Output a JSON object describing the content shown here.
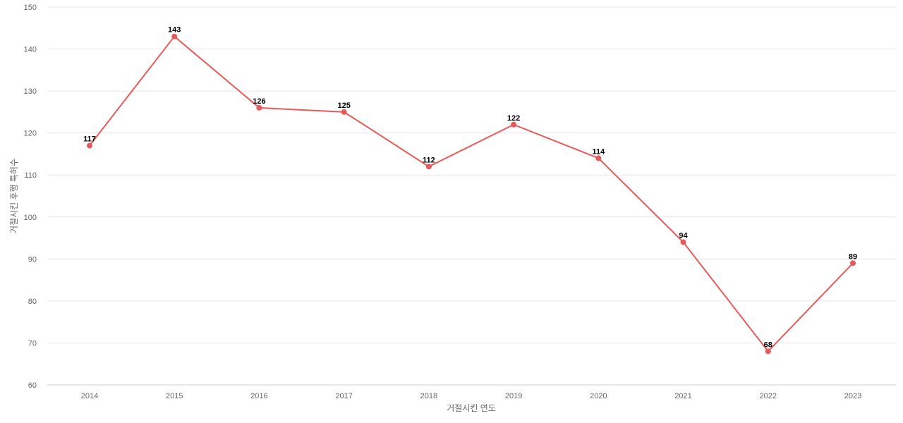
{
  "chart_data": {
    "type": "line",
    "title": "",
    "xlabel": "거절시킨 연도",
    "ylabel": "거절시킨 후행 특허수",
    "categories": [
      "2014",
      "2015",
      "2016",
      "2017",
      "2018",
      "2019",
      "2020",
      "2021",
      "2022",
      "2023"
    ],
    "series": [
      {
        "values": [
          117,
          143,
          126,
          125,
          112,
          122,
          114,
          94,
          68,
          89
        ]
      }
    ],
    "ylim": [
      60,
      150
    ],
    "yticks": [
      60,
      70,
      80,
      90,
      100,
      110,
      120,
      130,
      140,
      150
    ],
    "grid": true,
    "legend": "none",
    "colors": {
      "line": "#e85a5a",
      "grid": "#e6e6e6",
      "axis": "#cccccc",
      "tick_text": "#666666",
      "label_text": "#000000"
    }
  }
}
